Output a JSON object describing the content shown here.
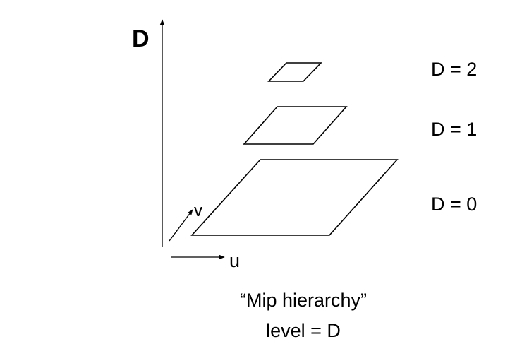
{
  "axes": {
    "d_label": "D",
    "u_label": "u",
    "v_label": "v"
  },
  "levels": [
    {
      "label": "D = 2",
      "level": 2
    },
    {
      "label": "D = 1",
      "level": 1
    },
    {
      "label": "D = 0",
      "level": 0
    }
  ],
  "caption": {
    "line1": "“Mip hierarchy”",
    "line2": "level = D"
  },
  "colors": {
    "stroke": "#000000",
    "background": "#ffffff"
  }
}
